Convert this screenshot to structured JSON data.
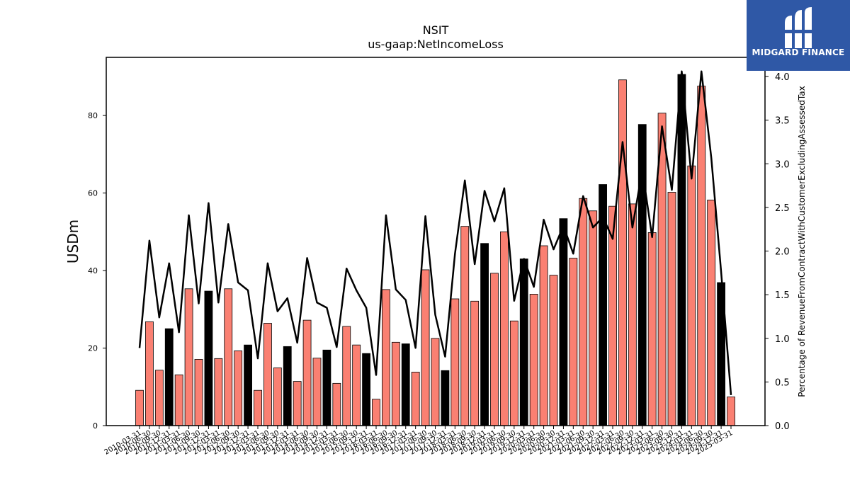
{
  "chart_data": {
    "type": "bar+line",
    "title": "NSIT",
    "subtitle": "us-gaap:NetIncomeLoss",
    "ylabel": "USDm",
    "y2label": "Percentage of RevenueFromContractWithCustomerExcludingAssessedTax",
    "ylim": [
      0,
      95
    ],
    "y2lim": [
      0,
      4.22
    ],
    "yticks": [
      0,
      20,
      40,
      60,
      80
    ],
    "y2ticks": [
      "0.0",
      "0.5",
      "1.0",
      "1.5",
      "2.0",
      "2.5",
      "3.0",
      "3.5",
      "4.0"
    ],
    "grid": false,
    "colors": {
      "bar": "#fa8072",
      "bar_q4": "#000000",
      "line": "#000000"
    },
    "categories": [
      "2010-03-31",
      "2010-06-30",
      "2010-09-30",
      "2010-12-31",
      "2011-03-31",
      "2011-06-30",
      "2011-09-30",
      "2011-12-31",
      "2012-03-31",
      "2012-06-30",
      "2012-09-30",
      "2012-12-31",
      "2013-03-31",
      "2013-06-30",
      "2013-09-30",
      "2013-12-31",
      "2014-03-31",
      "2014-06-30",
      "2014-09-30",
      "2014-12-31",
      "2015-03-31",
      "2015-06-30",
      "2015-09-30",
      "2015-12-31",
      "2016-03-31",
      "2016-06-30",
      "2016-09-30",
      "2016-12-31",
      "2017-03-31",
      "2017-06-30",
      "2017-09-30",
      "2017-12-31",
      "2018-03-31",
      "2018-06-30",
      "2018-09-30",
      "2018-12-31",
      "2019-03-31",
      "2019-06-30",
      "2019-09-30",
      "2019-12-31",
      "2020-03-31",
      "2020-06-30",
      "2020-09-30",
      "2020-12-31",
      "2021-03-31",
      "2021-06-30",
      "2021-09-30",
      "2021-12-31",
      "2022-03-31",
      "2022-06-30",
      "2022-09-30",
      "2022-12-31",
      "2023-03-31",
      "2023-06-30",
      "2023-09-30",
      "2023-12-31",
      "2024-03-31",
      "2024-06-30",
      "2024-09-30",
      "2024-12-31",
      "2025-03-31"
    ],
    "series": [
      {
        "type": "bar",
        "values": [
          9.1,
          26.8,
          14.3,
          25.0,
          13.1,
          35.3,
          17.1,
          34.7,
          17.3,
          35.3,
          19.3,
          20.8,
          9.1,
          26.4,
          14.9,
          20.4,
          11.4,
          27.2,
          17.4,
          19.5,
          10.9,
          25.6,
          20.8,
          18.6,
          6.8,
          35.1,
          21.5,
          21.1,
          13.8,
          40.2,
          22.5,
          14.2,
          32.7,
          51.4,
          32.1,
          47.0,
          39.3,
          50.0,
          27.0,
          43.0,
          33.9,
          46.4,
          38.8,
          53.4,
          43.2,
          58.6,
          55.4,
          62.2,
          56.6,
          89.2,
          57.2,
          77.7,
          49.8,
          80.6,
          60.2,
          90.6,
          67.0,
          87.6,
          58.2,
          36.9,
          7.4
        ]
      },
      {
        "type": "line",
        "axis": "right",
        "values": [
          0.89,
          2.12,
          1.24,
          1.86,
          1.07,
          2.41,
          1.4,
          2.55,
          1.41,
          2.31,
          1.64,
          1.55,
          0.77,
          1.86,
          1.31,
          1.46,
          0.95,
          1.92,
          1.41,
          1.35,
          0.9,
          1.8,
          1.55,
          1.35,
          0.58,
          2.41,
          1.56,
          1.44,
          0.89,
          2.4,
          1.27,
          0.79,
          1.97,
          2.81,
          1.85,
          2.69,
          2.34,
          2.72,
          1.43,
          1.91,
          1.59,
          2.36,
          2.02,
          2.29,
          1.97,
          2.63,
          2.27,
          2.39,
          2.14,
          3.25,
          2.27,
          2.93,
          2.16,
          3.43,
          2.7,
          4.06,
          2.83,
          4.06,
          3.07,
          1.76,
          0.35
        ]
      }
    ]
  },
  "logo": {
    "name": "MIDGARD FINANCE"
  }
}
